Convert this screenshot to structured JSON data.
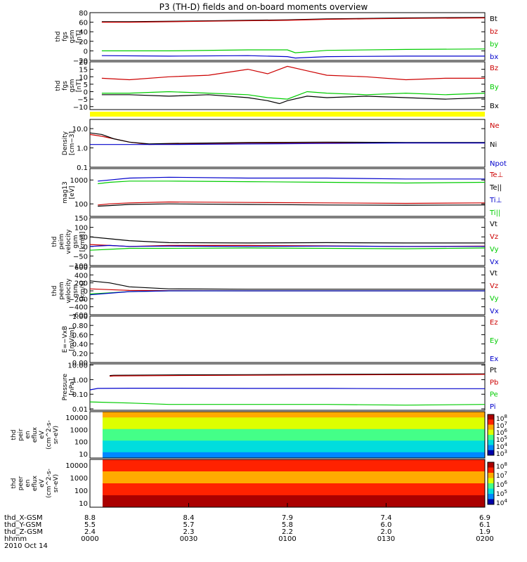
{
  "title": "P3 (TH-D) fields and on-board moments overview",
  "chart_data": {
    "type": "line",
    "panels": [
      {
        "ylabel": [
          "thd",
          "fgs",
          "gsm",
          "[nT]"
        ],
        "yticks": [
          "80",
          "60",
          "40",
          "20",
          "0",
          "−20"
        ],
        "ylim": [
          -20,
          80
        ],
        "log": false,
        "series": [
          {
            "name": "Bt",
            "color": "#000000",
            "x": [
              0.03,
              0.1,
              0.3,
              0.5,
              0.6,
              0.7,
              0.8,
              1.0
            ],
            "y": [
              61,
              61,
              63,
              65,
              67,
              68,
              69,
              70
            ]
          },
          {
            "name": "bz",
            "color": "#cc0000",
            "x": [
              0.03,
              0.1,
              0.3,
              0.5,
              0.6,
              0.7,
              0.8,
              1.0
            ],
            "y": [
              60,
              60,
              62,
              64,
              66,
              67,
              68,
              69
            ]
          },
          {
            "name": "by",
            "color": "#00cc00",
            "x": [
              0.03,
              0.2,
              0.4,
              0.5,
              0.52,
              0.6,
              0.8,
              1.0
            ],
            "y": [
              0,
              0,
              2,
              2,
              -4,
              1,
              3,
              4
            ]
          },
          {
            "name": "bx",
            "color": "#0000cc",
            "x": [
              0.03,
              0.2,
              0.4,
              0.5,
              0.52,
              0.6,
              0.8,
              1.0
            ],
            "y": [
              -10,
              -11,
              -10,
              -12,
              -15,
              -12,
              -11,
              -11
            ]
          }
        ]
      },
      {
        "ylabel": [
          "thd",
          "fgs",
          "gsm",
          "[nT]"
        ],
        "yticks": [
          "20",
          "15",
          "10",
          "5",
          "0",
          "−5",
          "−10"
        ],
        "ylim": [
          -12,
          20
        ],
        "log": false,
        "series": [
          {
            "name": "Bz",
            "color": "#cc0000",
            "x": [
              0.03,
              0.1,
              0.2,
              0.3,
              0.35,
              0.4,
              0.45,
              0.5,
              0.55,
              0.6,
              0.7,
              0.8,
              0.9,
              1.0
            ],
            "y": [
              9,
              8,
              10,
              11,
              13,
              15,
              12,
              17,
              14,
              11,
              10,
              8,
              9,
              9
            ]
          },
          {
            "name": "By",
            "color": "#00cc00",
            "x": [
              0.03,
              0.1,
              0.2,
              0.3,
              0.4,
              0.45,
              0.5,
              0.55,
              0.6,
              0.7,
              0.8,
              0.9,
              1.0
            ],
            "y": [
              -1,
              -1,
              0,
              -1,
              -2,
              -4,
              -5,
              0,
              -1,
              -2,
              -1,
              -2,
              -1
            ]
          },
          {
            "name": "Bx",
            "color": "#000000",
            "x": [
              0.03,
              0.1,
              0.2,
              0.3,
              0.4,
              0.45,
              0.48,
              0.5,
              0.55,
              0.6,
              0.7,
              0.8,
              0.9,
              1.0
            ],
            "y": [
              -2,
              -2,
              -3,
              -2,
              -4,
              -6,
              -8,
              -6,
              -3,
              -4,
              -3,
              -4,
              -5,
              -4
            ]
          }
        ]
      },
      {
        "ylabel": [
          "Density",
          "[cm−3]"
        ],
        "yticks": [
          "10.0",
          "1.0",
          "0.1"
        ],
        "ylim": [
          0.1,
          30
        ],
        "log": true,
        "series": [
          {
            "name": "Ne",
            "color": "#cc0000",
            "x": [
              0.0,
              0.03,
              0.06,
              0.1,
              0.15,
              0.2,
              0.4,
              0.6,
              0.8,
              1.0
            ],
            "y": [
              5,
              4,
              3,
              2,
              1.5,
              1.6,
              1.8,
              1.9,
              1.8,
              1.8
            ]
          },
          {
            "name": "Ni",
            "color": "#000000",
            "x": [
              0.0,
              0.03,
              0.06,
              0.1,
              0.15,
              0.2,
              0.4,
              0.6,
              0.8,
              1.0
            ],
            "y": [
              6,
              5,
              3,
              2,
              1.6,
              1.7,
              1.9,
              2.0,
              1.9,
              1.9
            ]
          },
          {
            "name": "Npot",
            "color": "#0000cc",
            "x": [
              0.0,
              0.2,
              0.4,
              0.6,
              0.8,
              1.0
            ],
            "y": [
              1.5,
              1.5,
              1.6,
              1.7,
              1.8,
              1.8
            ]
          }
        ]
      },
      {
        "ylabel": [
          "mag13",
          "[eV]"
        ],
        "yticks": [
          "1000",
          "100"
        ],
        "ylim": [
          30,
          3000
        ],
        "log": true,
        "series": [
          {
            "name": "Te⊥",
            "color": "#cc0000",
            "x": [
              0.02,
              0.05,
              0.1,
              0.2,
              0.4,
              0.6,
              0.8,
              1.0
            ],
            "y": [
              90,
              100,
              110,
              120,
              115,
              110,
              105,
              110
            ]
          },
          {
            "name": "Te||",
            "color": "#000000",
            "x": [
              0.02,
              0.05,
              0.1,
              0.2,
              0.4,
              0.6,
              0.8,
              1.0
            ],
            "y": [
              80,
              85,
              95,
              100,
              95,
              90,
              88,
              90
            ]
          },
          {
            "name": "Ti⊥",
            "color": "#0000cc",
            "x": [
              0.02,
              0.05,
              0.1,
              0.2,
              0.4,
              0.6,
              0.8,
              1.0
            ],
            "y": [
              900,
              1000,
              1200,
              1300,
              1200,
              1200,
              1100,
              1100
            ]
          },
          {
            "name": "Ti||",
            "color": "#00cc00",
            "x": [
              0.02,
              0.05,
              0.1,
              0.2,
              0.4,
              0.6,
              0.8,
              1.0
            ],
            "y": [
              700,
              800,
              900,
              900,
              850,
              800,
              750,
              800
            ]
          }
        ]
      },
      {
        "ylabel": [
          "thd",
          "peim",
          "velocity",
          "gsm",
          "[km/s]"
        ],
        "yticks": [
          "150",
          "100",
          "50",
          "0",
          "−50",
          "−100"
        ],
        "ylim": [
          -100,
          150
        ],
        "log": false,
        "series": [
          {
            "name": "Vt",
            "color": "#000000",
            "x": [
              0.0,
              0.05,
              0.1,
              0.2,
              0.4,
              0.6,
              0.8,
              1.0
            ],
            "y": [
              50,
              40,
              30,
              20,
              18,
              20,
              18,
              18
            ]
          },
          {
            "name": "Vz",
            "color": "#cc0000",
            "x": [
              0.0,
              0.05,
              0.1,
              0.2,
              0.4,
              0.6,
              0.8,
              1.0
            ],
            "y": [
              10,
              5,
              0,
              5,
              5,
              3,
              0,
              2
            ]
          },
          {
            "name": "Vy",
            "color": "#00cc00",
            "x": [
              0.0,
              0.05,
              0.1,
              0.2,
              0.4,
              0.6,
              0.8,
              1.0
            ],
            "y": [
              -20,
              -15,
              -10,
              -10,
              -8,
              -10,
              -12,
              -8
            ]
          },
          {
            "name": "Vx",
            "color": "#0000cc",
            "x": [
              0.0,
              0.05,
              0.1,
              0.2,
              0.4,
              0.6,
              0.8,
              1.0
            ],
            "y": [
              0,
              5,
              0,
              2,
              0,
              2,
              0,
              0
            ]
          }
        ]
      },
      {
        "ylabel": [
          "thd",
          "peem",
          "velocity",
          "gsm",
          "[km/s]"
        ],
        "yticks": [
          "600",
          "400",
          "200",
          "0",
          "−200",
          "−400",
          "−600"
        ],
        "ylim": [
          -600,
          600
        ],
        "log": false,
        "series": [
          {
            "name": "Vt",
            "color": "#000000",
            "x": [
              0.0,
              0.05,
              0.1,
              0.2,
              0.4,
              0.6,
              0.8,
              1.0
            ],
            "y": [
              250,
              200,
              100,
              50,
              40,
              40,
              40,
              40
            ]
          },
          {
            "name": "Vz",
            "color": "#cc0000",
            "x": [
              0.0,
              0.05,
              0.1,
              0.2,
              0.4,
              0.6,
              0.8,
              1.0
            ],
            "y": [
              50,
              30,
              10,
              5,
              0,
              0,
              0,
              0
            ]
          },
          {
            "name": "Vy",
            "color": "#00cc00",
            "x": [
              0.0,
              0.05,
              0.1,
              0.2,
              0.4,
              0.6,
              0.8,
              1.0
            ],
            "y": [
              -80,
              -50,
              -20,
              0,
              0,
              0,
              0,
              0
            ]
          },
          {
            "name": "Vx",
            "color": "#0000cc",
            "x": [
              0.0,
              0.05,
              0.1,
              0.2,
              0.4,
              0.6,
              0.8,
              1.0
            ],
            "y": [
              -100,
              -60,
              -20,
              0,
              0,
              0,
              0,
              0
            ]
          }
        ]
      },
      {
        "ylabel": [
          "E=−VxB",
          "[mV/m]"
        ],
        "yticks": [
          "1.00",
          "0.80",
          "0.60",
          "0.40",
          "0.20",
          "0.00"
        ],
        "ylim": [
          0,
          1
        ],
        "log": false,
        "series": [
          {
            "name": "Ez",
            "color": "#cc0000",
            "x": [],
            "y": []
          },
          {
            "name": "Ey",
            "color": "#00cc00",
            "x": [],
            "y": []
          },
          {
            "name": "Ex",
            "color": "#0000cc",
            "x": [],
            "y": []
          }
        ]
      },
      {
        "ylabel": [
          "Pressure",
          "[nPa]"
        ],
        "yticks": [
          "10.00",
          "1.00",
          "0.10",
          "0.01"
        ],
        "ylim": [
          0.008,
          12
        ],
        "log": true,
        "series": [
          {
            "name": "Pt",
            "color": "#000000",
            "x": [
              0.05,
              0.06,
              0.2,
              0.4,
              0.6,
              0.8,
              1.0
            ],
            "y": [
              1.9,
              2.0,
              2.1,
              2.2,
              2.3,
              2.4,
              2.5
            ]
          },
          {
            "name": "Pb",
            "color": "#cc0000",
            "x": [
              0.05,
              0.06,
              0.2,
              0.4,
              0.6,
              0.8,
              1.0
            ],
            "y": [
              1.7,
              1.8,
              1.9,
              2.0,
              2.1,
              2.2,
              2.3
            ]
          },
          {
            "name": "Pe",
            "color": "#00cc00",
            "x": [
              0.0,
              0.1,
              0.2,
              0.4,
              0.6,
              0.8,
              1.0
            ],
            "y": [
              0.03,
              0.025,
              0.02,
              0.02,
              0.02,
              0.018,
              0.02
            ]
          },
          {
            "name": "Pi",
            "color": "#0000cc",
            "x": [
              0.0,
              0.02,
              0.1,
              0.2,
              0.4,
              0.6,
              0.8,
              1.0
            ],
            "y": [
              0.2,
              0.25,
              0.26,
              0.26,
              0.25,
              0.25,
              0.24,
              0.24
            ]
          }
        ]
      }
    ],
    "spectrograms": [
      {
        "ylabel": [
          "thd",
          "peir",
          "en",
          "eflux",
          "eV",
          "(cm^2-s-",
          "sr-eV)"
        ],
        "yticks": [
          "10000",
          "1000",
          "100",
          "10"
        ],
        "cbar_ticks": [
          "10^8",
          "10^7",
          "10^6",
          "10^5",
          "10^4",
          "10^3"
        ]
      },
      {
        "ylabel": [
          "thd",
          "peer",
          "en",
          "eflux",
          "eV",
          "(cm^2-s-",
          "sr-eV)"
        ],
        "yticks": [
          "10000",
          "1000",
          "100",
          "10"
        ],
        "cbar_ticks": [
          "10^8",
          "10^7",
          "10^6",
          "10^5",
          "10^4"
        ]
      }
    ],
    "x_axis": {
      "row_labels": [
        "thd_X-GSM",
        "thd_Y-GSM",
        "thd_Z-GSM",
        "hhmm",
        "2010 Oct 14"
      ],
      "columns": [
        [
          "8.8",
          "5.5",
          "2.4",
          "0000"
        ],
        [
          "8.4",
          "5.7",
          "2.3",
          "0030"
        ],
        [
          "7.9",
          "5.8",
          "2.2",
          "0100"
        ],
        [
          "7.4",
          "6.0",
          "2.0",
          "0130"
        ],
        [
          "6.9",
          "6.1",
          "1.9",
          "0200"
        ]
      ]
    }
  }
}
